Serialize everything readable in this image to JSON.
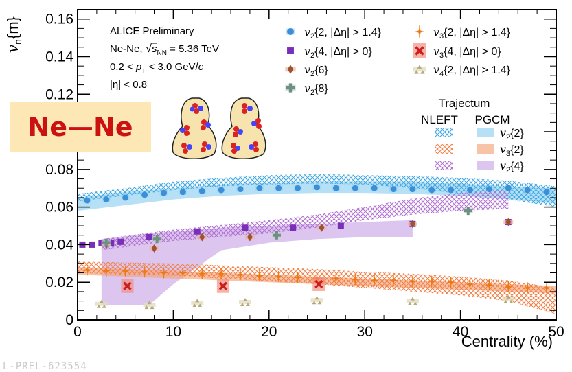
{
  "colors": {
    "v2_2": "#3a8fd8",
    "v2_4": "#7a2fb8",
    "v2_6": "#a0522d",
    "v2_8": "#6f8f84",
    "v3_2": "#f07810",
    "v3_4": "#cc1e1e",
    "v4_2": "#b5a978",
    "band_v2": "#8fd0f0",
    "band_v3": "#f5a57a",
    "band_v4": "#c9a6e6",
    "hatch_v2": "#40a8e0",
    "hatch_v3": "#f0824a",
    "hatch_v4": "#b070d0"
  },
  "header": {
    "line1": "ALICE Preliminary",
    "line2a": "Ne-Ne, ",
    "line2b": "s",
    "line2c": "NN",
    "line2d": " = 5.36 TeV",
    "line3a": "0.2 < ",
    "line3b": "p",
    "line3c": "T",
    "line3d": " < 3.0 GeV/",
    "line3e": "c",
    "line4": "|η| < 0.8"
  },
  "badge": "Ne—Ne",
  "footer": "L-PREL-623554",
  "chart_data": {
    "type": "scatter",
    "title": "",
    "xlabel": "Centrality (%)",
    "ylabel": "v_n{m}",
    "xlim": [
      0,
      50
    ],
    "ylim": [
      0,
      0.165
    ],
    "xticks": [
      "0",
      "10",
      "20",
      "30",
      "40",
      "50"
    ],
    "yticks": [
      "0",
      "0.02",
      "0.04",
      "0.06",
      "0.08",
      "0.1",
      "0.12",
      "0.14",
      "0.16"
    ],
    "legend_placement": "top-right",
    "legend_model_title": "Trajectum",
    "legend_model_cols": [
      "NLEFT",
      "PGCM"
    ],
    "series": [
      {
        "name": "v2{2, |Δη| > 1.4}",
        "label": {
          "base": "v",
          "sub": "2",
          "rest": "{2, |Δη| > 1.4}"
        },
        "marker": "circle",
        "color_key": "v2_2",
        "x": [
          1,
          3,
          5,
          7,
          9,
          11,
          13,
          15,
          17,
          19,
          21,
          23,
          25,
          27,
          29,
          31,
          33,
          35,
          37,
          39,
          41,
          43,
          45,
          47,
          49
        ],
        "y": [
          0.0635,
          0.064,
          0.065,
          0.0665,
          0.0675,
          0.068,
          0.0685,
          0.069,
          0.0695,
          0.07,
          0.07,
          0.07,
          0.0705,
          0.07,
          0.07,
          0.07,
          0.0695,
          0.0695,
          0.069,
          0.069,
          0.069,
          0.0695,
          0.07,
          0.069,
          0.068
        ]
      },
      {
        "name": "v2{4, |Δη| > 0}",
        "label": {
          "base": "v",
          "sub": "2",
          "rest": "{4, |Δη| > 0}"
        },
        "marker": "square",
        "color_key": "v2_4",
        "x": [
          0.5,
          1.5,
          2.5,
          3.5,
          4.5,
          7.5,
          12.5,
          17.5,
          22.5,
          27.5,
          35,
          45
        ],
        "y": [
          0.04,
          0.04,
          0.041,
          0.041,
          0.0415,
          0.044,
          0.047,
          0.049,
          0.049,
          0.05,
          0.051,
          0.052
        ]
      },
      {
        "name": "v2{6}",
        "label": {
          "base": "v",
          "sub": "2",
          "rest": "{6}"
        },
        "marker": "diamond",
        "color_key": "v2_6",
        "x": [
          3,
          8,
          13,
          18,
          25.5,
          35,
          45
        ],
        "y": [
          0.04,
          0.038,
          0.044,
          0.044,
          0.049,
          0.051,
          0.052
        ]
      },
      {
        "name": "v2{8}",
        "label": {
          "base": "v",
          "sub": "2",
          "rest": "{8}"
        },
        "marker": "cross",
        "color_key": "v2_8",
        "x": [
          3,
          8.3,
          20.8,
          40.8
        ],
        "y": [
          0.041,
          0.043,
          0.045,
          0.058
        ]
      },
      {
        "name": "v3{2, |Δη| > 1.4}",
        "label": {
          "base": "v",
          "sub": "3",
          "rest": "{2, |Δη| > 1.4}"
        },
        "marker": "star",
        "color_key": "v3_2",
        "x": [
          1,
          3,
          5,
          7,
          9,
          11,
          13,
          15,
          17,
          19,
          21,
          23,
          25,
          27,
          29,
          31,
          33,
          35,
          37,
          39,
          41,
          43,
          45,
          47,
          49
        ],
        "y": [
          0.0265,
          0.026,
          0.026,
          0.0255,
          0.025,
          0.025,
          0.0245,
          0.0245,
          0.024,
          0.0235,
          0.023,
          0.0225,
          0.022,
          0.022,
          0.0215,
          0.021,
          0.021,
          0.0205,
          0.0205,
          0.02,
          0.019,
          0.0185,
          0.0175,
          0.017,
          0.017
        ]
      },
      {
        "name": "v3{4, |Δη| > 0}",
        "label": {
          "base": "v",
          "sub": "3",
          "rest": "{4, |Δη| > 0}"
        },
        "marker": "xmark",
        "color_key": "v3_4",
        "x": [
          5.2,
          15.2,
          25.2
        ],
        "y": [
          0.018,
          0.018,
          0.019
        ]
      },
      {
        "name": "v4{2, |Δη| > 1.4}",
        "label": {
          "base": "v",
          "sub": "4",
          "rest": "{2, |Δη| > 1.4}"
        },
        "marker": "triangles",
        "color_key": "v4_2",
        "x": [
          2.5,
          7.5,
          12.5,
          17.5,
          25,
          35,
          45
        ],
        "y": [
          0.0085,
          0.008,
          0.009,
          0.0095,
          0.0105,
          0.01,
          0.011
        ]
      }
    ],
    "model_bands": [
      {
        "name": "v2{2} NLEFT",
        "style": "hatch",
        "color_key": "hatch_v2",
        "x": [
          0,
          5,
          10,
          15,
          20,
          25,
          30,
          35,
          40,
          45,
          50
        ],
        "lo": [
          0.063,
          0.066,
          0.069,
          0.071,
          0.072,
          0.0725,
          0.072,
          0.07,
          0.067,
          0.064,
          0.06
        ],
        "hi": [
          0.067,
          0.07,
          0.0735,
          0.0755,
          0.077,
          0.0775,
          0.077,
          0.0765,
          0.0755,
          0.074,
          0.071
        ]
      },
      {
        "name": "v2{2} PGCM",
        "style": "fill",
        "color_key": "band_v2",
        "x": [
          0,
          5,
          10,
          15,
          20,
          25,
          30,
          35,
          40,
          45,
          50
        ],
        "lo": [
          0.058,
          0.061,
          0.064,
          0.066,
          0.067,
          0.0675,
          0.0675,
          0.067,
          0.066,
          0.064,
          0.062
        ],
        "hi": [
          0.065,
          0.068,
          0.07,
          0.072,
          0.073,
          0.0735,
          0.0735,
          0.0735,
          0.0725,
          0.071,
          0.07
        ]
      },
      {
        "name": "v2{4} NLEFT",
        "style": "hatch",
        "color_key": "hatch_v4",
        "x": [
          2.5,
          10,
          15,
          20,
          25,
          30,
          35,
          40,
          45
        ],
        "lo": [
          0.037,
          0.042,
          0.044,
          0.046,
          0.049,
          0.053,
          0.056,
          0.058,
          0.059
        ],
        "hi": [
          0.043,
          0.048,
          0.0505,
          0.053,
          0.056,
          0.06,
          0.0645,
          0.0675,
          0.069
        ]
      },
      {
        "name": "v2{4} PGCM",
        "style": "fill",
        "color_key": "band_v4",
        "x": [
          2.5,
          7.5,
          10,
          15,
          20,
          25,
          30,
          35
        ],
        "lo": [
          0.008,
          0.008,
          0.019,
          0.037,
          0.041,
          0.043,
          0.044,
          0.044
        ],
        "hi": [
          0.043,
          0.046,
          0.047,
          0.049,
          0.05,
          0.051,
          0.052,
          0.053
        ]
      },
      {
        "name": "v3{2} NLEFT",
        "style": "hatch",
        "color_key": "hatch_v3",
        "x": [
          0,
          5,
          10,
          15,
          20,
          25,
          30,
          35,
          40,
          45,
          50
        ],
        "lo": [
          0.025,
          0.024,
          0.0235,
          0.022,
          0.0205,
          0.019,
          0.017,
          0.015,
          0.013,
          0.01,
          0.003
        ],
        "hi": [
          0.031,
          0.0305,
          0.03,
          0.029,
          0.028,
          0.027,
          0.0255,
          0.0245,
          0.023,
          0.021,
          0.017
        ]
      },
      {
        "name": "v3{2} PGCM",
        "style": "fill",
        "color_key": "band_v3",
        "x": [
          0,
          10,
          20,
          30,
          40,
          50
        ],
        "lo": [
          0.024,
          0.022,
          0.02,
          0.018,
          0.016,
          0.014
        ],
        "hi": [
          0.028,
          0.026,
          0.024,
          0.022,
          0.02,
          0.018
        ]
      }
    ],
    "model_legend": [
      {
        "label": {
          "base": "v",
          "sub": "2",
          "rest": "{2}"
        },
        "hatch": "hatch_v2",
        "fill": "band_v2"
      },
      {
        "label": {
          "base": "v",
          "sub": "3",
          "rest": "{2}"
        },
        "hatch": "hatch_v3",
        "fill": "band_v3"
      },
      {
        "label": {
          "base": "v",
          "sub": "2",
          "rest": "{4}"
        },
        "hatch": "hatch_v4",
        "fill": "band_v4"
      }
    ]
  }
}
